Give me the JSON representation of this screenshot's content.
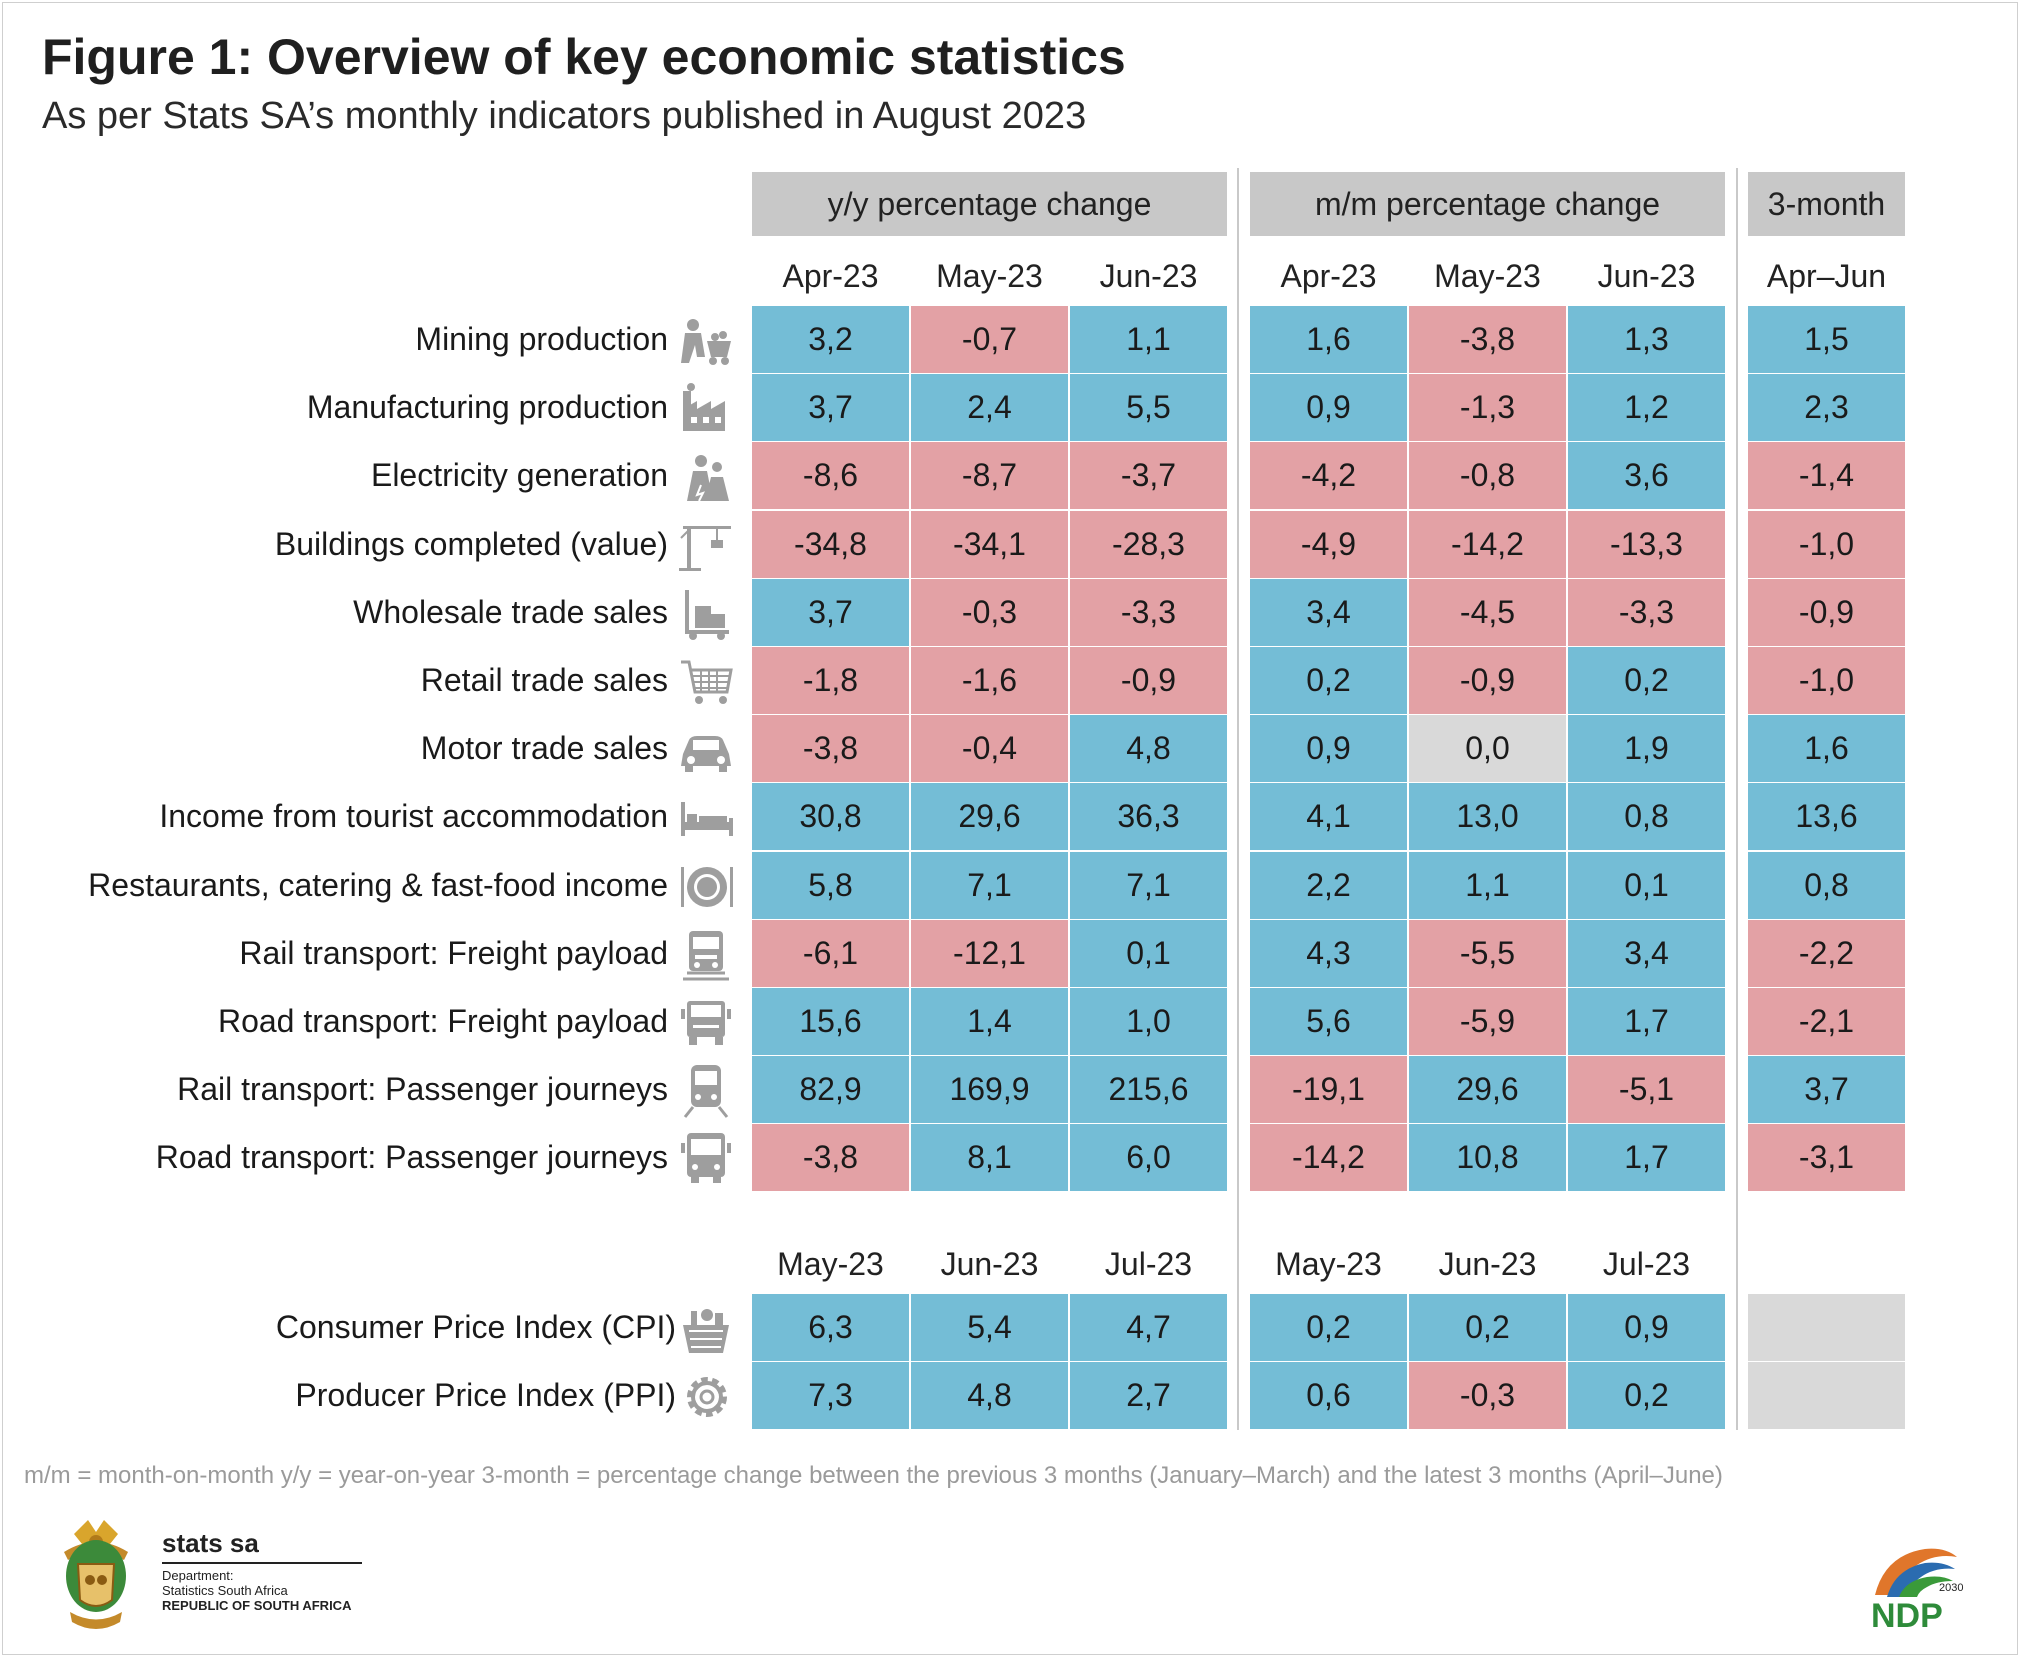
{
  "title": "Figure 1: Overview of key economic statistics",
  "subtitle": "As per Stats SA’s monthly indicators published in August 2023",
  "groups": {
    "yy": "y/y percentage change",
    "mm": "m/m percentage change",
    "three": "3-month"
  },
  "col_heads_top": [
    "Apr-23",
    "May-23",
    "Jun-23",
    "Apr-23",
    "May-23",
    "Jun-23",
    "Apr–Jun"
  ],
  "col_heads_bottom": [
    "May-23",
    "Jun-23",
    "Jul-23",
    "May-23",
    "Jun-23",
    "Jul-23"
  ],
  "chart_data": {
    "type": "table",
    "rows": [
      {
        "label": "Mining production",
        "icon": "miner-icon",
        "values": [
          "3,2",
          "-0,7",
          "1,1",
          "1,6",
          "-3,8",
          "1,3",
          "1,5"
        ]
      },
      {
        "label": "Manufacturing production",
        "icon": "factory-icon",
        "values": [
          "3,7",
          "2,4",
          "5,5",
          "0,9",
          "-1,3",
          "1,2",
          "2,3"
        ]
      },
      {
        "label": "Electricity generation",
        "icon": "power-plant-icon",
        "values": [
          "-8,6",
          "-8,7",
          "-3,7",
          "-4,2",
          "-0,8",
          "3,6",
          "-1,4"
        ]
      },
      {
        "label": "Buildings completed (value)",
        "icon": "crane-icon",
        "values": [
          "-34,8",
          "-34,1",
          "-28,3",
          "-4,9",
          "-14,2",
          "-13,3",
          "-1,0"
        ]
      },
      {
        "label": "Wholesale trade sales",
        "icon": "hand-truck-icon",
        "values": [
          "3,7",
          "-0,3",
          "-3,3",
          "3,4",
          "-4,5",
          "-3,3",
          "-0,9"
        ]
      },
      {
        "label": "Retail trade sales",
        "icon": "shopping-cart-icon",
        "values": [
          "-1,8",
          "-1,6",
          "-0,9",
          "0,2",
          "-0,9",
          "0,2",
          "-1,0"
        ]
      },
      {
        "label": "Motor trade sales",
        "icon": "car-icon",
        "values": [
          "-3,8",
          "-0,4",
          "4,8",
          "0,9",
          "0,0",
          "1,9",
          "1,6"
        ]
      },
      {
        "label": "Income from tourist accommodation",
        "icon": "bed-icon",
        "values": [
          "30,8",
          "29,6",
          "36,3",
          "4,1",
          "13,0",
          "0,8",
          "13,6"
        ]
      },
      {
        "label": "Restaurants, catering & fast-food income",
        "icon": "plate-icon",
        "values": [
          "5,8",
          "7,1",
          "7,1",
          "2,2",
          "1,1",
          "0,1",
          "0,8"
        ]
      },
      {
        "label": "Rail transport: Freight payload",
        "icon": "locomotive-icon",
        "values": [
          "-6,1",
          "-12,1",
          "0,1",
          "4,3",
          "-5,5",
          "3,4",
          "-2,2"
        ]
      },
      {
        "label": "Road transport: Freight payload",
        "icon": "truck-icon",
        "values": [
          "15,6",
          "1,4",
          "1,0",
          "5,6",
          "-5,9",
          "1,7",
          "-2,1"
        ]
      },
      {
        "label": "Rail transport: Passenger journeys",
        "icon": "train-icon",
        "values": [
          "82,9",
          "169,9",
          "215,6",
          "-19,1",
          "29,6",
          "-5,1",
          "3,7"
        ]
      },
      {
        "label": "Road transport: Passenger journeys",
        "icon": "bus-icon",
        "values": [
          "-3,8",
          "8,1",
          "6,0",
          "-14,2",
          "10,8",
          "1,7",
          "-3,1"
        ]
      }
    ],
    "price_rows": [
      {
        "label": "Consumer Price Index (CPI)",
        "icon": "basket-icon",
        "values": [
          "6,3",
          "5,4",
          "4,7",
          "0,2",
          "0,2",
          "0,9"
        ]
      },
      {
        "label": "Producer Price Index (PPI)",
        "icon": "gear-icon",
        "values": [
          "7,3",
          "4,8",
          "2,7",
          "0,6",
          "-0,3",
          "0,2"
        ]
      }
    ],
    "colors": {
      "increase": "#74bdd6",
      "decrease": "#e3a1a5",
      "no_change": "#d9d9d9"
    }
  },
  "footnote": "m/m = month-on-month    y/y = year-on-year    3-month = percentage change between the previous 3 months (January–March) and the latest 3 months (April–June)",
  "logo": {
    "brand": "stats sa",
    "line1": "Department:",
    "line2": "Statistics South Africa",
    "line3": "REPUBLIC OF SOUTH AFRICA"
  },
  "ndp": {
    "year": "2030",
    "text": "NDP"
  }
}
